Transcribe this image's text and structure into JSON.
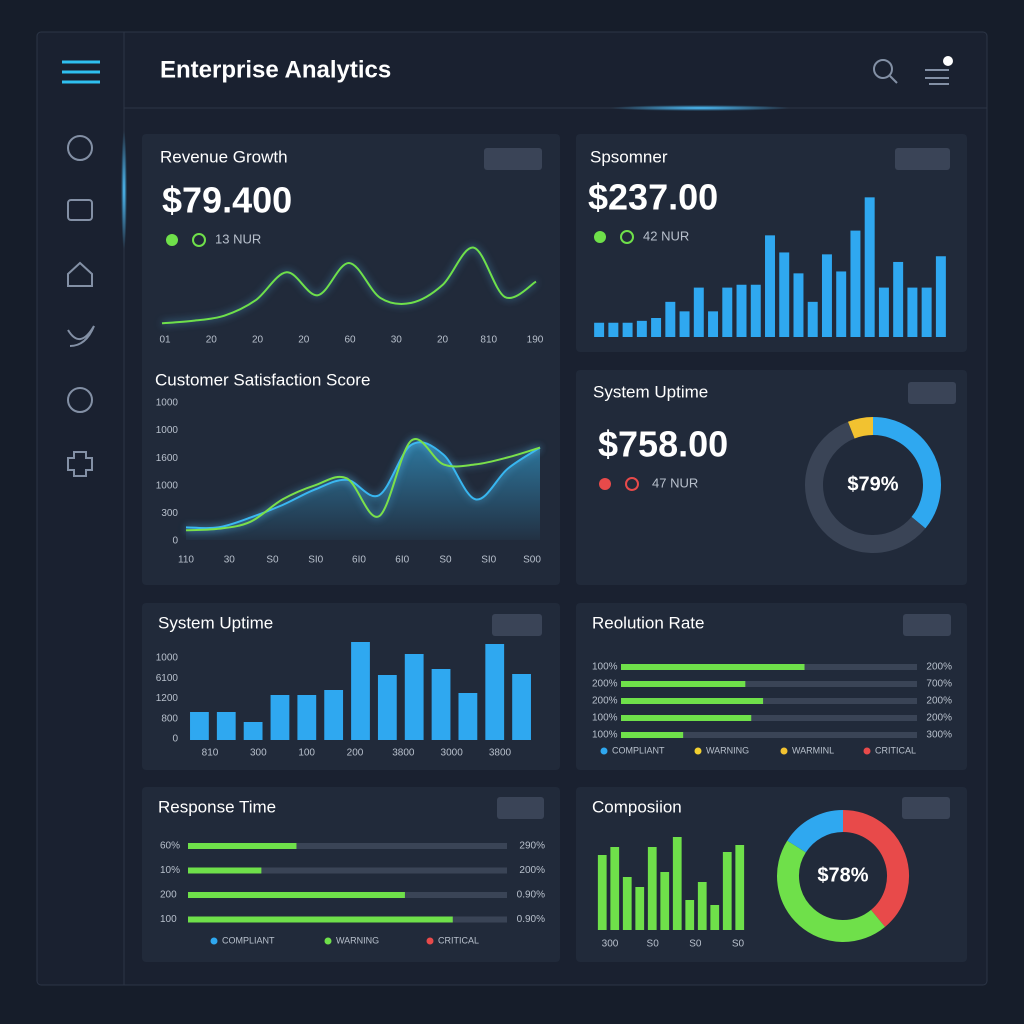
{
  "header": {
    "title": "Enterprise Analytics"
  },
  "panels": [
    {
      "type": "line",
      "title": "Revenue Growth",
      "value": "$79.400",
      "note": "13 NUR",
      "x_labels": [
        "01",
        "20",
        "20",
        "20",
        "60",
        "30",
        "20",
        "810",
        "190"
      ],
      "ylim": [
        0,
        100
      ],
      "series": [
        {
          "color": "#6fe04a",
          "values": [
            2,
            5,
            11,
            29,
            62,
            35,
            73,
            32,
            26,
            47,
            91,
            33,
            51
          ]
        }
      ]
    },
    {
      "type": "bar",
      "title": "Spsomner",
      "value": "$237.00",
      "note": "42 NUR",
      "ylim": [
        0,
        160
      ],
      "color": "#2fa8f0",
      "values": [
        15,
        15,
        15,
        17,
        20,
        37,
        27,
        52,
        27,
        52,
        55,
        55,
        107,
        89,
        67,
        37,
        87,
        69,
        112,
        147,
        52,
        79,
        52,
        52,
        85
      ]
    },
    {
      "type": "line",
      "title": "Customer Satisfaction Score",
      "y_labels": [
        "1000",
        "1000",
        "1600",
        "1000",
        "300",
        "0"
      ],
      "x_labels": [
        "110",
        "30",
        "S0",
        "SI0",
        "6I0",
        "6I0",
        "S0",
        "SI0",
        "S00"
      ],
      "ylim": [
        0,
        100
      ],
      "series": [
        {
          "color": "#38b6f0",
          "fill": true,
          "values": [
            9,
            9,
            16,
            25,
            36,
            43,
            32,
            68,
            61,
            29,
            51,
            66
          ]
        },
        {
          "color": "#7be04a",
          "values": [
            7,
            8,
            13,
            29,
            39,
            44,
            17,
            71,
            54,
            54,
            59,
            66
          ]
        }
      ]
    },
    {
      "type": "donut",
      "title": "System Uptime",
      "value": "$758.00",
      "note": "47 NUR",
      "donut_label": "$79%",
      "segments": [
        {
          "color": "#2fa8f0",
          "value": 36
        },
        {
          "color": "#3a4456",
          "value": 58
        },
        {
          "color": "#f2c230",
          "value": 6
        }
      ]
    },
    {
      "type": "bar",
      "title": "System Uptime",
      "y_labels": [
        "1000",
        "6100",
        "1200",
        "800",
        "0"
      ],
      "x_labels": [
        "810",
        "300",
        "100",
        "200",
        "3800",
        "3000",
        "3800"
      ],
      "ylim": [
        0,
        100
      ],
      "color": "#2fa8f0",
      "values": [
        28,
        28,
        18,
        45,
        45,
        50,
        98,
        65,
        86,
        71,
        47,
        96,
        66
      ]
    },
    {
      "type": "hbar",
      "title": "Reolution Rate",
      "xlim": [
        0,
        100
      ],
      "color": "#6fe04a",
      "rows": [
        {
          "left": "100%",
          "right": "200%",
          "value": 62
        },
        {
          "left": "200%",
          "right": "700%",
          "value": 42
        },
        {
          "left": "200%",
          "right": "200%",
          "value": 48
        },
        {
          "left": "100%",
          "right": "200%",
          "value": 44
        },
        {
          "left": "100%",
          "right": "300%",
          "value": 21
        }
      ],
      "legend": [
        {
          "label": "COMPLIANT",
          "color": "#2fa8f0"
        },
        {
          "label": "WARNING",
          "color": "#f2d030"
        },
        {
          "label": "WARMINL",
          "color": "#f2c230"
        },
        {
          "label": "CRITICAL",
          "color": "#e84a4a"
        }
      ]
    },
    {
      "type": "hbar",
      "title": "Response Time",
      "xlim": [
        0,
        100
      ],
      "color": "#6fe04a",
      "rows": [
        {
          "left": "60%",
          "right": "290%",
          "value": 34
        },
        {
          "left": "10%",
          "right": "200%",
          "value": 23
        },
        {
          "left": "200",
          "right": "0.90%",
          "value": 68
        },
        {
          "left": "100",
          "right": "0.90%",
          "value": 83
        }
      ],
      "legend": [
        {
          "label": "COMPLIANT",
          "color": "#2fa8f0"
        },
        {
          "label": "WARNING",
          "color": "#6fe04a"
        },
        {
          "label": "CRITICAL",
          "color": "#e84a4a"
        }
      ]
    },
    {
      "type": "bar",
      "title": "Composiion",
      "ylim": [
        0,
        100
      ],
      "color": "#6fe04a",
      "x_labels": [
        "300",
        "S0",
        "S0",
        "S0"
      ],
      "values": [
        75,
        83,
        53,
        43,
        83,
        58,
        93,
        30,
        48,
        25,
        78,
        85
      ],
      "donut_label": "$78%",
      "segments": [
        {
          "color": "#e84a4a",
          "value": 39
        },
        {
          "color": "#6fe04a",
          "value": 45
        },
        {
          "color": "#2fa8f0",
          "value": 16
        }
      ]
    }
  ]
}
